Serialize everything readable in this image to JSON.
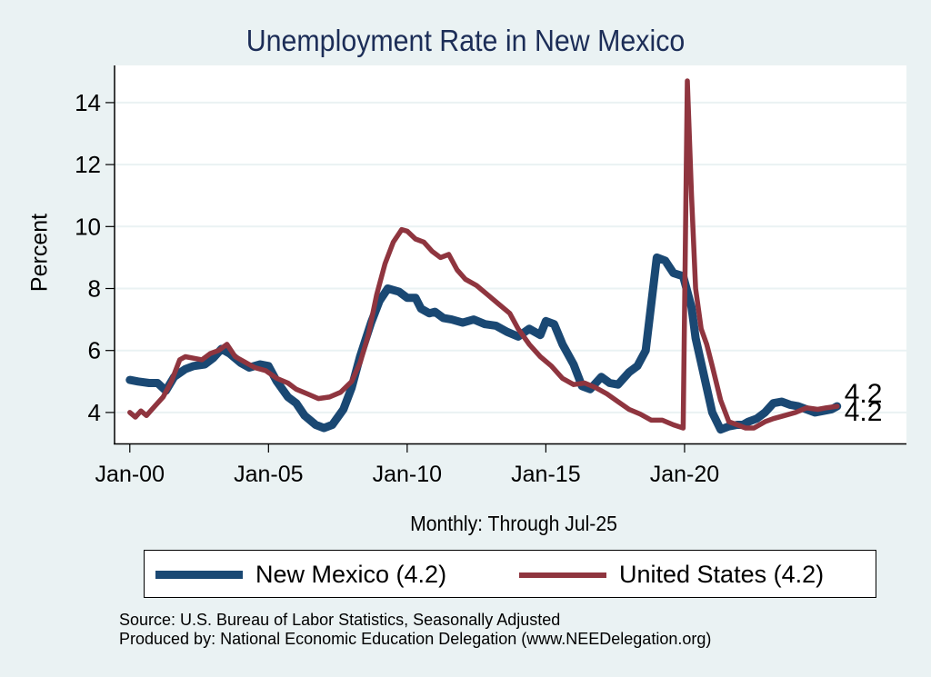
{
  "title": "Unemployment Rate in New Mexico",
  "colors": {
    "background": "#eaf2f3",
    "plot_background": "#ffffff",
    "grid": "#eaf2f3",
    "new_mexico": "#1a4873",
    "united_states": "#8f353f",
    "title": "#1c2d57"
  },
  "legend": {
    "items": [
      {
        "label": "New Mexico (4.2)",
        "series": "new_mexico"
      },
      {
        "label": "United States (4.2)",
        "series": "united_states"
      }
    ]
  },
  "notes": {
    "source": "Source: U.S. Bureau of Labor Statistics, Seasonally Adjusted",
    "produced_by": "Produced by: National Economic Education Delegation (www.NEEDelegation.org)"
  },
  "chart_data": {
    "type": "line",
    "title": "Unemployment Rate in New Mexico",
    "xlabel": "Monthly: Through Jul-25",
    "ylabel": "Percent",
    "xlim": [
      1999.45,
      2028.0
    ],
    "ylim": [
      3.0,
      15.2
    ],
    "yticks": [
      4,
      6,
      8,
      10,
      12,
      14
    ],
    "xticks": [
      {
        "value": 2000.0,
        "label": "Jan-00"
      },
      {
        "value": 2005.0,
        "label": "Jan-05"
      },
      {
        "value": 2010.0,
        "label": "Jan-10"
      },
      {
        "value": 2015.0,
        "label": "Jan-15"
      },
      {
        "value": 2020.0,
        "label": "Jan-20"
      }
    ],
    "grid": true,
    "legend_position": "bottom",
    "end_labels": [
      {
        "series": "United States",
        "text": "4.2"
      },
      {
        "series": "New Mexico",
        "text": "4.2"
      }
    ],
    "series": [
      {
        "name": "New Mexico",
        "key": "new_mexico",
        "x": [
          2000.0,
          2000.3,
          2000.7,
          2001.0,
          2001.3,
          2001.6,
          2002.0,
          2002.3,
          2002.7,
          2003.0,
          2003.3,
          2003.6,
          2004.0,
          2004.3,
          2004.7,
          2005.0,
          2005.3,
          2005.7,
          2006.0,
          2006.3,
          2006.7,
          2007.0,
          2007.3,
          2007.7,
          2008.0,
          2008.3,
          2008.7,
          2009.0,
          2009.3,
          2009.7,
          2010.0,
          2010.3,
          2010.5,
          2010.8,
          2011.0,
          2011.3,
          2011.6,
          2012.0,
          2012.4,
          2012.8,
          2013.2,
          2013.6,
          2014.0,
          2014.4,
          2014.8,
          2015.0,
          2015.3,
          2015.6,
          2016.0,
          2016.3,
          2016.6,
          2017.0,
          2017.3,
          2017.6,
          2018.0,
          2018.3,
          2018.6,
          2019.0,
          2019.3,
          2019.6,
          2019.95,
          2020.1,
          2020.25,
          2020.4,
          2020.6,
          2020.8,
          2021.0,
          2021.3,
          2021.6,
          2021.9,
          2022.1,
          2022.3,
          2022.6,
          2022.9,
          2023.2,
          2023.5,
          2023.8,
          2024.1,
          2024.4,
          2024.7,
          2025.0,
          2025.3,
          2025.5
        ],
        "values": [
          5.05,
          5.0,
          4.95,
          4.95,
          4.7,
          5.15,
          5.4,
          5.5,
          5.55,
          5.75,
          6.05,
          5.9,
          5.6,
          5.45,
          5.55,
          5.5,
          5.0,
          4.5,
          4.3,
          3.9,
          3.6,
          3.5,
          3.6,
          4.1,
          4.8,
          5.8,
          6.9,
          7.6,
          8.0,
          7.9,
          7.7,
          7.7,
          7.35,
          7.2,
          7.25,
          7.05,
          7.0,
          6.9,
          7.0,
          6.85,
          6.8,
          6.6,
          6.45,
          6.7,
          6.5,
          6.95,
          6.85,
          6.2,
          5.55,
          4.85,
          4.75,
          5.15,
          4.95,
          4.9,
          5.3,
          5.5,
          6.0,
          9.0,
          8.9,
          8.5,
          8.4,
          7.9,
          7.4,
          6.4,
          5.6,
          4.8,
          4.0,
          3.45,
          3.55,
          3.6,
          3.6,
          3.7,
          3.8,
          4.0,
          4.3,
          4.35,
          4.25,
          4.2,
          4.1,
          4.0,
          4.05,
          4.1,
          4.2
        ]
      },
      {
        "name": "United States",
        "key": "united_states",
        "x": [
          2000.0,
          2000.2,
          2000.4,
          2000.6,
          2000.9,
          2001.2,
          2001.5,
          2001.8,
          2002.0,
          2002.3,
          2002.6,
          2002.9,
          2003.2,
          2003.5,
          2003.8,
          2004.1,
          2004.5,
          2004.9,
          2005.3,
          2005.7,
          2006.0,
          2006.4,
          2006.8,
          2007.2,
          2007.6,
          2008.0,
          2008.3,
          2008.6,
          2008.9,
          2009.2,
          2009.5,
          2009.8,
          2010.0,
          2010.3,
          2010.6,
          2010.9,
          2011.2,
          2011.5,
          2011.8,
          2012.1,
          2012.5,
          2012.9,
          2013.3,
          2013.7,
          2014.0,
          2014.4,
          2014.8,
          2015.2,
          2015.6,
          2016.0,
          2016.4,
          2016.8,
          2017.2,
          2017.6,
          2018.0,
          2018.4,
          2018.8,
          2019.2,
          2019.6,
          2019.95,
          2020.1,
          2020.25,
          2020.4,
          2020.6,
          2020.8,
          2021.0,
          2021.3,
          2021.6,
          2021.9,
          2022.2,
          2022.5,
          2022.9,
          2023.2,
          2023.6,
          2024.0,
          2024.4,
          2024.8,
          2025.1,
          2025.5
        ],
        "values": [
          4.0,
          3.85,
          4.05,
          3.9,
          4.2,
          4.5,
          5.0,
          5.7,
          5.8,
          5.75,
          5.7,
          5.9,
          6.0,
          6.2,
          5.8,
          5.65,
          5.45,
          5.35,
          5.1,
          4.95,
          4.75,
          4.6,
          4.45,
          4.5,
          4.65,
          5.0,
          5.6,
          6.5,
          7.8,
          8.8,
          9.5,
          9.9,
          9.85,
          9.6,
          9.5,
          9.2,
          9.0,
          9.1,
          8.6,
          8.3,
          8.1,
          7.8,
          7.5,
          7.2,
          6.7,
          6.2,
          5.8,
          5.5,
          5.1,
          4.9,
          4.95,
          4.8,
          4.6,
          4.35,
          4.1,
          3.95,
          3.75,
          3.75,
          3.6,
          3.5,
          14.7,
          11.0,
          8.0,
          6.7,
          6.2,
          5.5,
          4.4,
          3.7,
          3.6,
          3.5,
          3.5,
          3.7,
          3.8,
          3.9,
          4.0,
          4.15,
          4.1,
          4.15,
          4.2
        ]
      }
    ]
  }
}
